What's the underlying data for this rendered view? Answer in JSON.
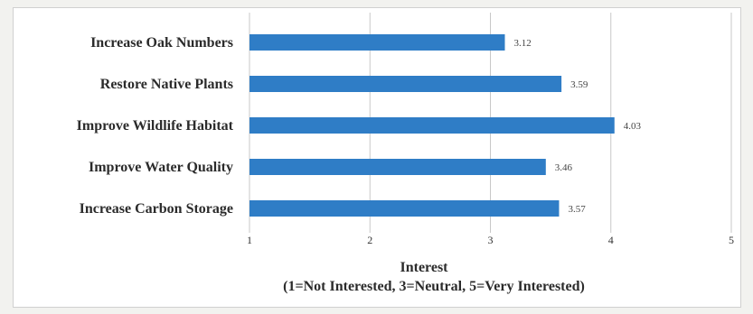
{
  "chart_data": {
    "type": "bar",
    "orientation": "horizontal",
    "categories": [
      "Increase Oak Numbers",
      "Restore Native Plants",
      "Improve Wildlife Habitat",
      "Improve Water Quality",
      "Increase Carbon Storage"
    ],
    "values": [
      3.12,
      3.59,
      4.03,
      3.46,
      3.57
    ],
    "data_labels": [
      "3.12",
      "3.59",
      "4.03",
      "3.46",
      "3.57"
    ],
    "xlabel": "Interest",
    "xlabel_sub": "(1=Not Interested, 3=Neutral, 5=Very Interested)",
    "xlim": [
      1,
      5
    ],
    "xticks": [
      "1",
      "2",
      "3",
      "4",
      "5"
    ],
    "grid": true,
    "bar_color": "#2f7dc6",
    "legend": "none"
  }
}
